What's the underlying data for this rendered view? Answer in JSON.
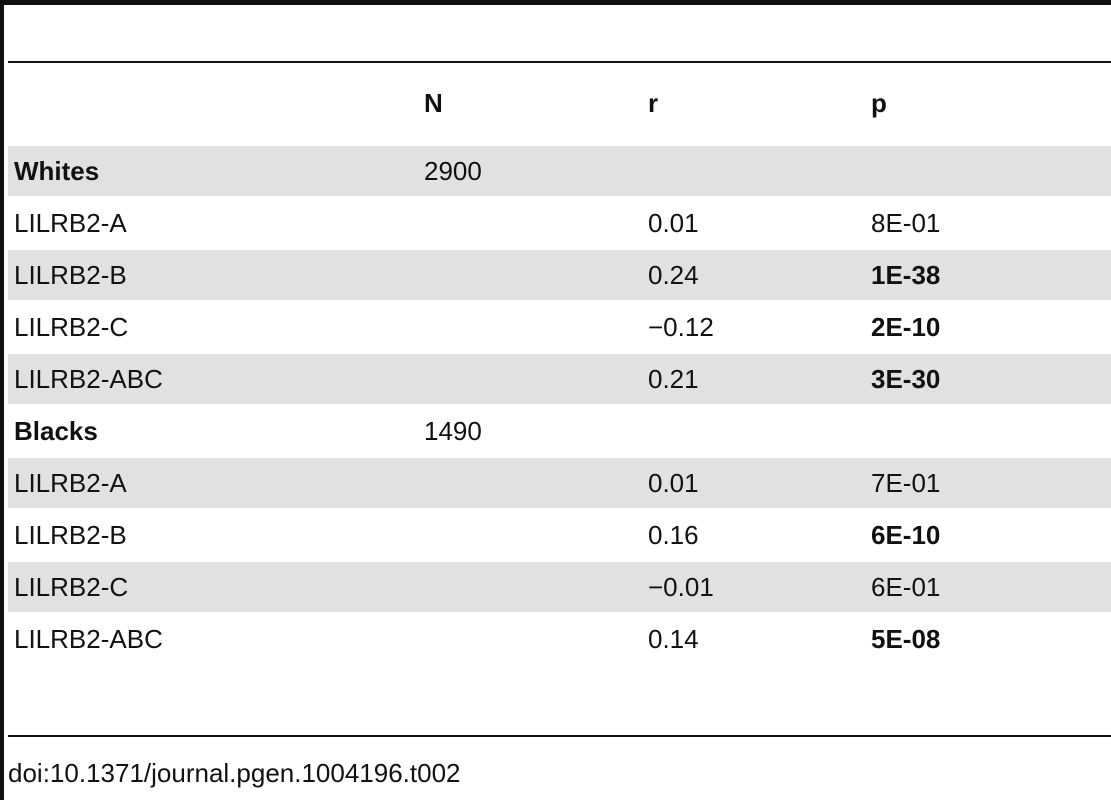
{
  "table": {
    "headers": [
      "",
      "N",
      "r",
      "p"
    ],
    "rows": [
      {
        "label": "Whites",
        "n": "2900",
        "r": "",
        "p": "",
        "label_bold": true,
        "p_bold": false,
        "shaded": true
      },
      {
        "label": "LILRB2-A",
        "n": "",
        "r": "0.01",
        "p": "8E-01",
        "label_bold": false,
        "p_bold": false,
        "shaded": false
      },
      {
        "label": "LILRB2-B",
        "n": "",
        "r": "0.24",
        "p": "1E-38",
        "label_bold": false,
        "p_bold": true,
        "shaded": true
      },
      {
        "label": "LILRB2-C",
        "n": "",
        "r": "−0.12",
        "p": "2E-10",
        "label_bold": false,
        "p_bold": true,
        "shaded": false
      },
      {
        "label": "LILRB2-ABC",
        "n": "",
        "r": "0.21",
        "p": "3E-30",
        "label_bold": false,
        "p_bold": true,
        "shaded": true
      },
      {
        "label": "Blacks",
        "n": "1490",
        "r": "",
        "p": "",
        "label_bold": true,
        "p_bold": false,
        "shaded": false
      },
      {
        "label": "LILRB2-A",
        "n": "",
        "r": "0.01",
        "p": "7E-01",
        "label_bold": false,
        "p_bold": false,
        "shaded": true
      },
      {
        "label": "LILRB2-B",
        "n": "",
        "r": "0.16",
        "p": "6E-10",
        "label_bold": false,
        "p_bold": true,
        "shaded": false
      },
      {
        "label": "LILRB2-C",
        "n": "",
        "r": "−0.01",
        "p": "6E-01",
        "label_bold": false,
        "p_bold": false,
        "shaded": true
      },
      {
        "label": "LILRB2-ABC",
        "n": "",
        "r": "0.14",
        "p": "5E-08",
        "label_bold": false,
        "p_bold": true,
        "shaded": false
      }
    ]
  },
  "footer": {
    "doi": "doi:10.1371/journal.pgen.1004196.t002"
  },
  "colors": {
    "shade": "#e1e1e1",
    "rule": "#111111"
  }
}
